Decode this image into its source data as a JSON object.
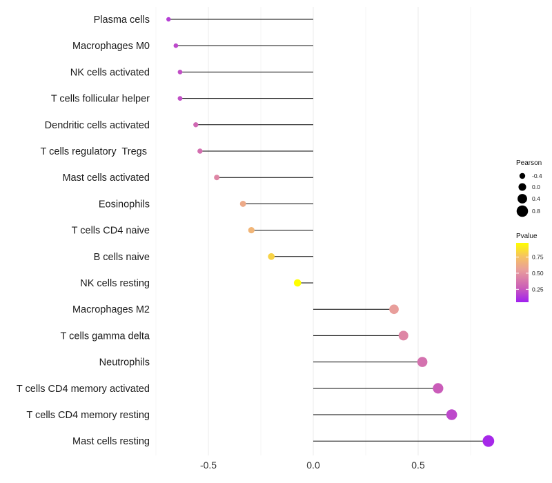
{
  "chart_data": {
    "type": "lollipop",
    "title": "",
    "xlabel": "",
    "ylabel": "",
    "xlim": [
      -0.75,
      0.9
    ],
    "x_ticks": [
      -0.5,
      0.0,
      0.5
    ],
    "x_tick_labels": [
      "-0.5",
      "0.0",
      "0.5"
    ],
    "categories": [
      "Plasma cells",
      "Macrophages M0",
      "NK cells activated",
      "T cells follicular helper",
      "Dendritic cells activated",
      "T cells regulatory  Tregs ",
      "Mast cells activated",
      "Eosinophils",
      "T cells CD4 naive",
      "B cells naive",
      "NK cells resting",
      "Macrophages M2",
      "T cells gamma delta",
      "Neutrophils",
      "T cells CD4 memory activated",
      "T cells CD4 memory resting",
      "Mast cells resting"
    ],
    "pearson": [
      -0.69,
      -0.655,
      -0.635,
      -0.635,
      -0.56,
      -0.54,
      -0.46,
      -0.335,
      -0.295,
      -0.2,
      -0.075,
      0.385,
      0.43,
      0.52,
      0.595,
      0.66,
      0.835
    ],
    "pvalue": [
      0.16,
      0.2,
      0.22,
      0.22,
      0.32,
      0.35,
      0.45,
      0.62,
      0.68,
      0.82,
      0.97,
      0.55,
      0.45,
      0.36,
      0.27,
      0.2,
      0.08
    ],
    "legend_size": {
      "title": "Pearson",
      "labels": [
        "-0.4",
        "0.0",
        "0.4",
        "0.8"
      ],
      "values": [
        -0.4,
        0.0,
        0.4,
        0.8
      ]
    },
    "legend_color": {
      "title": "Pvalue",
      "labels": [
        "0.75",
        "0.50",
        "0.25"
      ],
      "values": [
        0.75,
        0.5,
        0.25
      ],
      "range": [
        0.05,
        0.97
      ],
      "colors": [
        "#a020f0",
        "#cc5fb7",
        "#e99f9a",
        "#f6c45e",
        "#ffff00"
      ]
    }
  }
}
